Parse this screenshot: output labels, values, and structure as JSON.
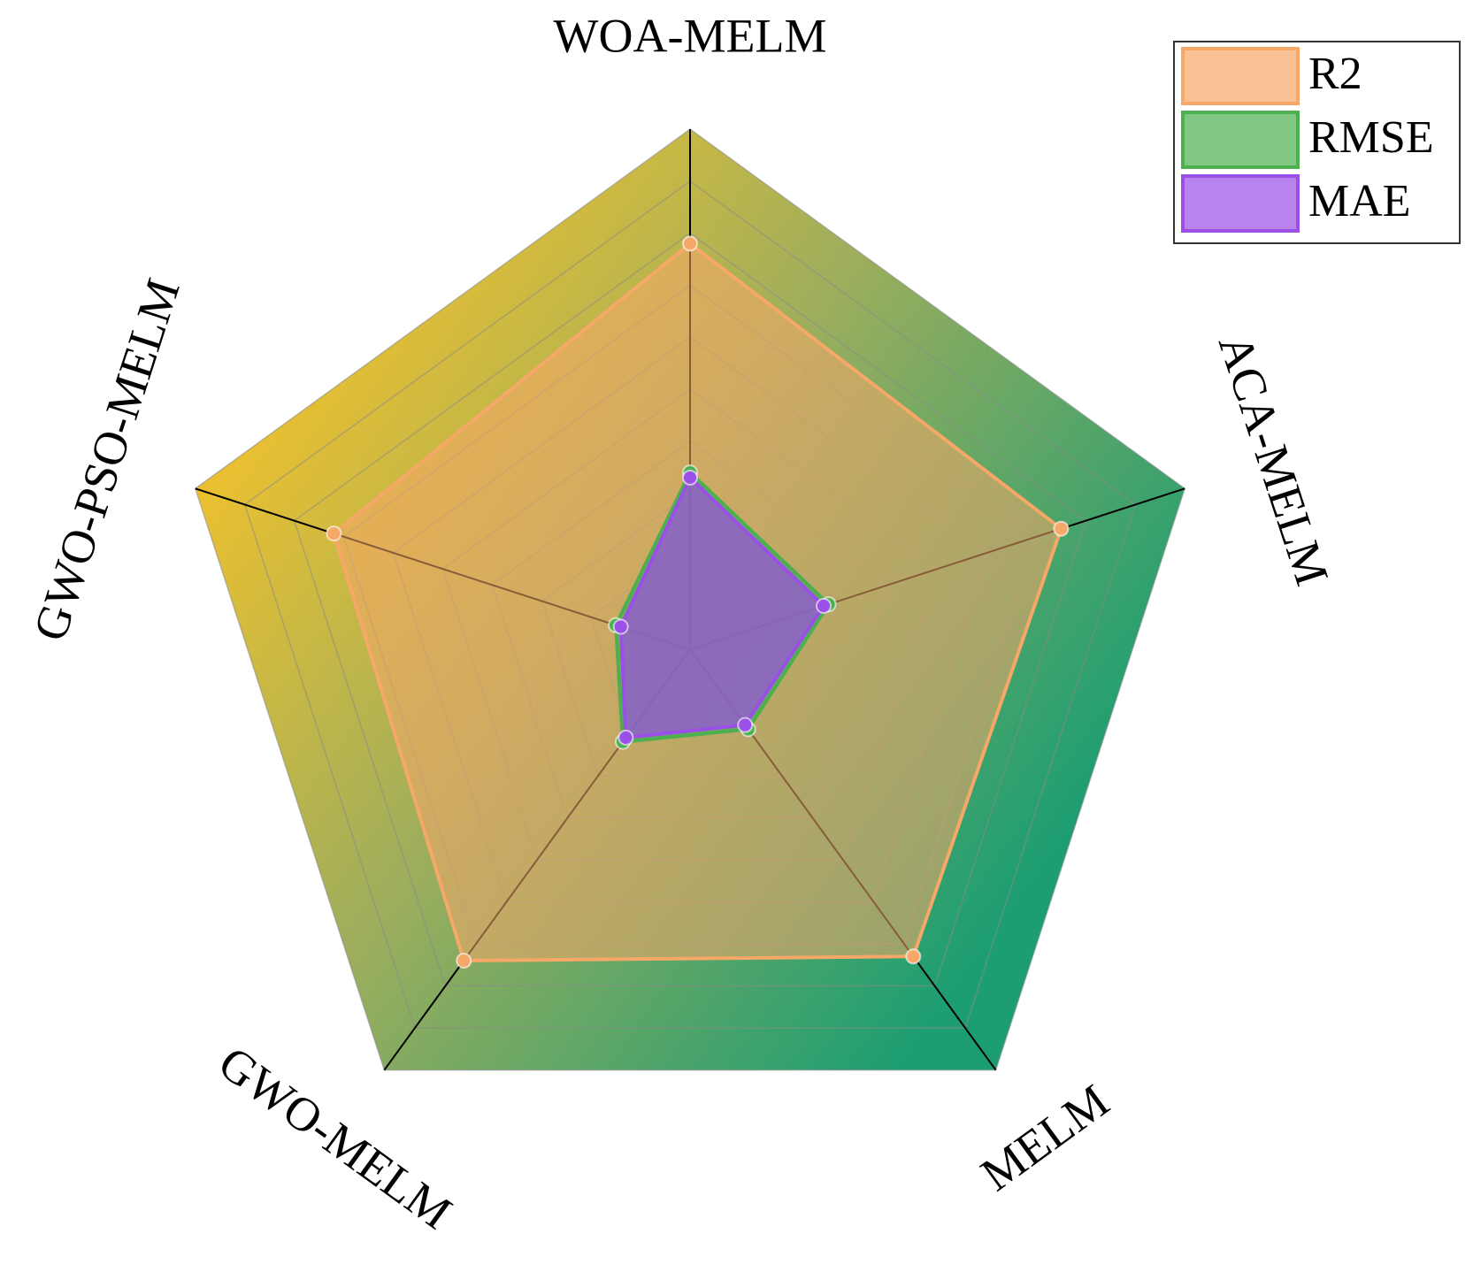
{
  "chart_data": {
    "type": "radar",
    "categories": [
      "WOA-MELM",
      "ACA-MELM",
      "MELM",
      "GWO-MELM",
      "GWO-PSO-MELM"
    ],
    "series": [
      {
        "name": "R2",
        "color": "#f5a867",
        "values": [
          0.78,
          0.75,
          0.73,
          0.74,
          0.72
        ]
      },
      {
        "name": "RMSE",
        "color": "#4caf50",
        "values": [
          0.34,
          0.28,
          0.19,
          0.22,
          0.15
        ]
      },
      {
        "name": "MAE",
        "color": "#9a4fe6",
        "values": [
          0.33,
          0.27,
          0.18,
          0.21,
          0.14
        ]
      }
    ],
    "ylim": [
      0,
      1
    ],
    "yticks": [
      0,
      0.1,
      0.2,
      0.3,
      0.4,
      0.5,
      0.6,
      0.7,
      0.8,
      0.9,
      1
    ],
    "grid": true,
    "legend": "upper right"
  }
}
